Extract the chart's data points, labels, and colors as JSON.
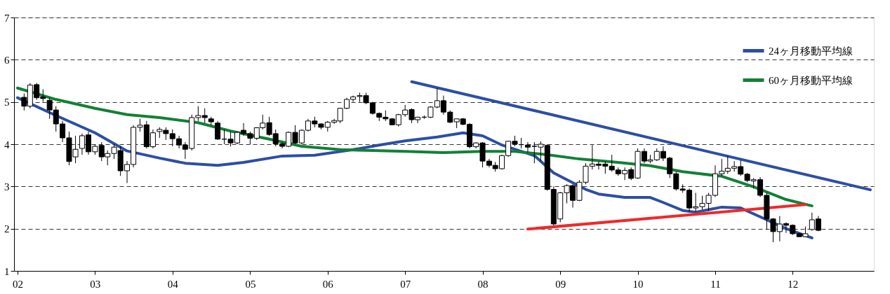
{
  "chart_data": {
    "type": "candlestick",
    "x": [
      "2002-02",
      "2002-03",
      "2002-04",
      "2002-05",
      "2002-06",
      "2002-07",
      "2002-08",
      "2002-09",
      "2002-10",
      "2002-11",
      "2002-12",
      "2003-01",
      "2003-02",
      "2003-03",
      "2003-04",
      "2003-05",
      "2003-06",
      "2003-07",
      "2003-08",
      "2003-09",
      "2003-10",
      "2003-11",
      "2003-12",
      "2004-01",
      "2004-02",
      "2004-03",
      "2004-04",
      "2004-05",
      "2004-06",
      "2004-07",
      "2004-08",
      "2004-09",
      "2004-10",
      "2004-11",
      "2004-12",
      "2005-01",
      "2005-02",
      "2005-03",
      "2005-04",
      "2005-05",
      "2005-06",
      "2005-07",
      "2005-08",
      "2005-09",
      "2005-10",
      "2005-11",
      "2005-12",
      "2006-01",
      "2006-02",
      "2006-03",
      "2006-04",
      "2006-05",
      "2006-06",
      "2006-07",
      "2006-08",
      "2006-09",
      "2006-10",
      "2006-11",
      "2006-12",
      "2007-01",
      "2007-02",
      "2007-03",
      "2007-04",
      "2007-05",
      "2007-06",
      "2007-07",
      "2007-08",
      "2007-09",
      "2007-10",
      "2007-11",
      "2007-12",
      "2008-01",
      "2008-02",
      "2008-03",
      "2008-04",
      "2008-05",
      "2008-06",
      "2008-07",
      "2008-08",
      "2008-09",
      "2008-10",
      "2008-11",
      "2008-12",
      "2009-01",
      "2009-02",
      "2009-03",
      "2009-04",
      "2009-05",
      "2009-06",
      "2009-07",
      "2009-08",
      "2009-09",
      "2009-10",
      "2009-11",
      "2009-12",
      "2010-01",
      "2010-02",
      "2010-03",
      "2010-04",
      "2010-05",
      "2010-06",
      "2010-07",
      "2010-08",
      "2010-09",
      "2010-10",
      "2010-11",
      "2010-12",
      "2011-01",
      "2011-02",
      "2011-03",
      "2011-04",
      "2011-05",
      "2011-06",
      "2011-07",
      "2011-08",
      "2011-09",
      "2011-10",
      "2011-11",
      "2011-12",
      "2012-01",
      "2012-02",
      "2012-03",
      "2012-04",
      "2012-05"
    ],
    "ohlc": [
      [
        5.11,
        5.2,
        4.8,
        4.9
      ],
      [
        4.9,
        5.45,
        4.85,
        5.4
      ],
      [
        5.41,
        5.45,
        5.05,
        5.1
      ],
      [
        5.12,
        5.3,
        5.0,
        5.08
      ],
      [
        5.04,
        5.1,
        4.6,
        4.81
      ],
      [
        4.81,
        4.9,
        4.3,
        4.48
      ],
      [
        4.48,
        4.55,
        4.05,
        4.15
      ],
      [
        4.15,
        4.3,
        3.5,
        3.59
      ],
      [
        3.7,
        4.2,
        3.55,
        3.88
      ],
      [
        3.9,
        4.25,
        3.75,
        4.2
      ],
      [
        4.22,
        4.3,
        3.75,
        3.82
      ],
      [
        3.82,
        4.0,
        3.75,
        3.95
      ],
      [
        3.97,
        4.05,
        3.6,
        3.7
      ],
      [
        3.7,
        3.85,
        3.5,
        3.78
      ],
      [
        3.78,
        4.0,
        3.65,
        3.93
      ],
      [
        3.85,
        3.95,
        3.25,
        3.37
      ],
      [
        3.37,
        3.6,
        3.08,
        3.52
      ],
      [
        3.52,
        4.45,
        3.45,
        4.4
      ],
      [
        4.4,
        4.6,
        4.3,
        4.45
      ],
      [
        4.46,
        4.55,
        3.9,
        3.94
      ],
      [
        3.94,
        4.35,
        3.9,
        4.27
      ],
      [
        4.3,
        4.4,
        4.15,
        4.35
      ],
      [
        4.33,
        4.4,
        4.1,
        4.25
      ],
      [
        4.25,
        4.35,
        3.95,
        4.13
      ],
      [
        4.13,
        4.2,
        3.9,
        3.98
      ],
      [
        3.98,
        4.05,
        3.65,
        3.88
      ],
      [
        3.9,
        4.7,
        3.85,
        4.63
      ],
      [
        4.63,
        4.9,
        4.55,
        4.68
      ],
      [
        4.68,
        4.85,
        4.5,
        4.63
      ],
      [
        4.6,
        4.65,
        4.45,
        4.53
      ],
      [
        4.5,
        4.55,
        4.1,
        4.12
      ],
      [
        4.12,
        4.35,
        4.0,
        4.12
      ],
      [
        4.12,
        4.3,
        3.95,
        4.03
      ],
      [
        4.03,
        4.3,
        4.0,
        4.28
      ],
      [
        4.33,
        4.5,
        4.2,
        4.25
      ],
      [
        4.25,
        4.3,
        4.0,
        4.14
      ],
      [
        4.14,
        4.4,
        4.1,
        4.39
      ],
      [
        4.39,
        4.7,
        4.35,
        4.5
      ],
      [
        4.51,
        4.65,
        4.2,
        4.23
      ],
      [
        4.25,
        4.35,
        3.95,
        4.01
      ],
      [
        4.01,
        4.05,
        3.9,
        3.95
      ],
      [
        3.95,
        4.3,
        3.93,
        4.28
      ],
      [
        4.28,
        4.45,
        4.0,
        4.03
      ],
      [
        4.03,
        4.35,
        4.0,
        4.33
      ],
      [
        4.33,
        4.6,
        4.3,
        4.55
      ],
      [
        4.55,
        4.65,
        4.4,
        4.48
      ],
      [
        4.48,
        4.5,
        4.35,
        4.4
      ],
      [
        4.4,
        4.55,
        4.3,
        4.52
      ],
      [
        4.52,
        4.6,
        4.48,
        4.56
      ],
      [
        4.55,
        4.86,
        4.5,
        4.85
      ],
      [
        4.85,
        5.1,
        4.83,
        5.06
      ],
      [
        5.06,
        5.15,
        5.0,
        5.12
      ],
      [
        5.13,
        5.22,
        5.0,
        5.15
      ],
      [
        5.15,
        5.22,
        4.95,
        4.98
      ],
      [
        4.98,
        5.0,
        4.7,
        4.73
      ],
      [
        4.73,
        4.75,
        4.55,
        4.64
      ],
      [
        4.64,
        4.8,
        4.55,
        4.6
      ],
      [
        4.6,
        4.62,
        4.45,
        4.46
      ],
      [
        4.46,
        4.72,
        4.42,
        4.7
      ],
      [
        4.7,
        4.93,
        4.65,
        4.81
      ],
      [
        4.82,
        4.85,
        4.5,
        4.58
      ],
      [
        4.58,
        4.65,
        4.5,
        4.64
      ],
      [
        4.64,
        4.68,
        4.6,
        4.64
      ],
      [
        4.64,
        4.9,
        4.62,
        4.88
      ],
      [
        4.88,
        5.33,
        4.85,
        5.03
      ],
      [
        5.03,
        5.15,
        4.7,
        4.76
      ],
      [
        4.76,
        4.8,
        4.5,
        4.52
      ],
      [
        4.53,
        4.6,
        4.38,
        4.6
      ],
      [
        4.6,
        4.62,
        4.45,
        4.47
      ],
      [
        4.47,
        4.5,
        3.9,
        3.94
      ],
      [
        3.94,
        4.05,
        3.9,
        4.03
      ],
      [
        4.03,
        4.05,
        3.45,
        3.6
      ],
      [
        3.6,
        3.65,
        3.45,
        3.5
      ],
      [
        3.5,
        3.58,
        3.35,
        3.42
      ],
      [
        3.42,
        3.75,
        3.4,
        3.73
      ],
      [
        3.73,
        4.08,
        3.7,
        4.07
      ],
      [
        4.07,
        4.2,
        3.95,
        4.0
      ],
      [
        3.99,
        4.15,
        3.9,
        3.99
      ],
      [
        3.98,
        4.05,
        3.8,
        3.93
      ],
      [
        3.95,
        4.05,
        3.55,
        3.95
      ],
      [
        3.93,
        4.07,
        3.6,
        4.0
      ],
      [
        3.97,
        4.0,
        2.9,
        2.93
      ],
      [
        2.93,
        3.0,
        2.08,
        2.11
      ],
      [
        2.23,
        2.87,
        2.15,
        2.85
      ],
      [
        2.85,
        3.05,
        2.6,
        3.02
      ],
      [
        3.02,
        3.05,
        2.5,
        2.67
      ],
      [
        2.67,
        3.15,
        2.65,
        3.1
      ],
      [
        3.1,
        3.55,
        3.05,
        3.48
      ],
      [
        3.48,
        3.98,
        3.4,
        3.53
      ],
      [
        3.53,
        3.6,
        3.4,
        3.5
      ],
      [
        3.53,
        3.6,
        3.3,
        3.48
      ],
      [
        3.48,
        3.75,
        3.35,
        3.39
      ],
      [
        3.39,
        3.45,
        3.25,
        3.3
      ],
      [
        3.3,
        3.45,
        3.15,
        3.38
      ],
      [
        3.4,
        3.45,
        3.15,
        3.19
      ],
      [
        3.2,
        3.9,
        3.18,
        3.83
      ],
      [
        3.83,
        3.9,
        3.55,
        3.6
      ],
      [
        3.6,
        3.75,
        3.55,
        3.63
      ],
      [
        3.63,
        3.9,
        3.6,
        3.83
      ],
      [
        3.83,
        3.95,
        3.6,
        3.67
      ],
      [
        3.67,
        3.7,
        3.2,
        3.3
      ],
      [
        3.3,
        3.35,
        2.9,
        2.94
      ],
      [
        2.94,
        3.05,
        2.85,
        2.91
      ],
      [
        2.91,
        2.95,
        2.4,
        2.49
      ],
      [
        2.49,
        2.85,
        2.4,
        2.52
      ],
      [
        2.52,
        2.78,
        2.45,
        2.6
      ],
      [
        2.6,
        2.85,
        2.42,
        2.79
      ],
      [
        2.79,
        3.5,
        2.75,
        3.3
      ],
      [
        3.3,
        3.65,
        3.25,
        3.36
      ],
      [
        3.36,
        3.72,
        3.3,
        3.43
      ],
      [
        3.43,
        3.6,
        3.35,
        3.47
      ],
      [
        3.47,
        3.62,
        3.25,
        3.29
      ],
      [
        3.29,
        3.32,
        3.1,
        3.14
      ],
      [
        3.13,
        3.2,
        2.95,
        3.16
      ],
      [
        3.16,
        3.22,
        2.75,
        2.79
      ],
      [
        2.79,
        2.85,
        1.98,
        2.23
      ],
      [
        2.23,
        2.25,
        1.68,
        1.93
      ],
      [
        1.93,
        2.3,
        1.7,
        2.11
      ],
      [
        2.12,
        2.15,
        1.9,
        2.08
      ],
      [
        2.08,
        2.1,
        1.85,
        1.88
      ],
      [
        1.88,
        1.9,
        1.8,
        1.81
      ],
      [
        1.81,
        2.05,
        1.8,
        1.88
      ],
      [
        1.98,
        2.38,
        1.95,
        2.21
      ],
      [
        2.23,
        2.3,
        1.94,
        1.96
      ]
    ],
    "series": [
      {
        "name": "24ヶ月移動平均線",
        "type": "line",
        "color": "#2e4ea3",
        "x": [
          "2002-01",
          "2002-07",
          "2003-01",
          "2003-06",
          "2003-11",
          "2004-03",
          "2004-08",
          "2004-12",
          "2005-06",
          "2005-11",
          "2006-05",
          "2006-09",
          "2007-01",
          "2007-06",
          "2007-10",
          "2008-01",
          "2008-04",
          "2008-09",
          "2008-12",
          "2009-05",
          "2009-07",
          "2009-11",
          "2010-03",
          "2010-05",
          "2010-08",
          "2010-10",
          "2011-02",
          "2011-05",
          "2011-08",
          "2011-12",
          "2012-04"
        ],
        "values": [
          5.1,
          4.68,
          4.27,
          3.84,
          3.67,
          3.55,
          3.5,
          3.57,
          3.72,
          3.74,
          3.87,
          3.98,
          4.08,
          4.17,
          4.27,
          4.2,
          3.98,
          3.73,
          3.32,
          2.93,
          2.82,
          2.74,
          2.74,
          2.62,
          2.43,
          2.39,
          2.51,
          2.49,
          2.28,
          2.0,
          1.78
        ]
      },
      {
        "name": "60ヶ月移動平均線",
        "type": "line",
        "color": "#138036",
        "x": [
          "2002-01",
          "2002-07",
          "2003-01",
          "2003-06",
          "2003-11",
          "2004-05",
          "2004-10",
          "2005-04",
          "2005-09",
          "2006-03",
          "2006-08",
          "2007-01",
          "2007-07",
          "2008-01",
          "2008-06",
          "2008-11",
          "2009-04",
          "2009-10",
          "2010-03",
          "2010-08",
          "2011-02",
          "2011-07",
          "2011-12",
          "2012-04"
        ],
        "values": [
          5.33,
          5.06,
          4.85,
          4.7,
          4.63,
          4.51,
          4.31,
          4.12,
          3.95,
          3.87,
          3.85,
          3.83,
          3.8,
          3.83,
          3.83,
          3.75,
          3.65,
          3.57,
          3.49,
          3.35,
          3.24,
          2.99,
          2.69,
          2.54
        ]
      },
      {
        "type": "line",
        "color": "#2e4ea3",
        "x": [
          "2007-02",
          "2013-01"
        ],
        "values": [
          5.48,
          2.92
        ]
      },
      {
        "type": "line",
        "color": "#ee2a2a",
        "x": [
          "2008-08",
          "2012-03"
        ],
        "values": [
          1.99,
          2.57
        ]
      }
    ],
    "xlim": [
      "2002-01",
      "2013-01"
    ],
    "xticks": [
      {
        "value": "2002-01",
        "label": "02"
      },
      {
        "value": "2003-01",
        "label": "03"
      },
      {
        "value": "2004-01",
        "label": "04"
      },
      {
        "value": "2005-01",
        "label": "05"
      },
      {
        "value": "2006-01",
        "label": "06"
      },
      {
        "value": "2007-01",
        "label": "07"
      },
      {
        "value": "2008-01",
        "label": "08"
      },
      {
        "value": "2009-01",
        "label": "09"
      },
      {
        "value": "2010-01",
        "label": "10"
      },
      {
        "value": "2011-01",
        "label": "11"
      },
      {
        "value": "2012-01",
        "label": "12"
      }
    ],
    "ylim": [
      1,
      7
    ],
    "yticks": [
      1,
      2,
      3,
      4,
      5,
      6,
      7
    ],
    "grid": "y",
    "legend": "top right",
    "line_style": "solid",
    "marker": "none"
  }
}
